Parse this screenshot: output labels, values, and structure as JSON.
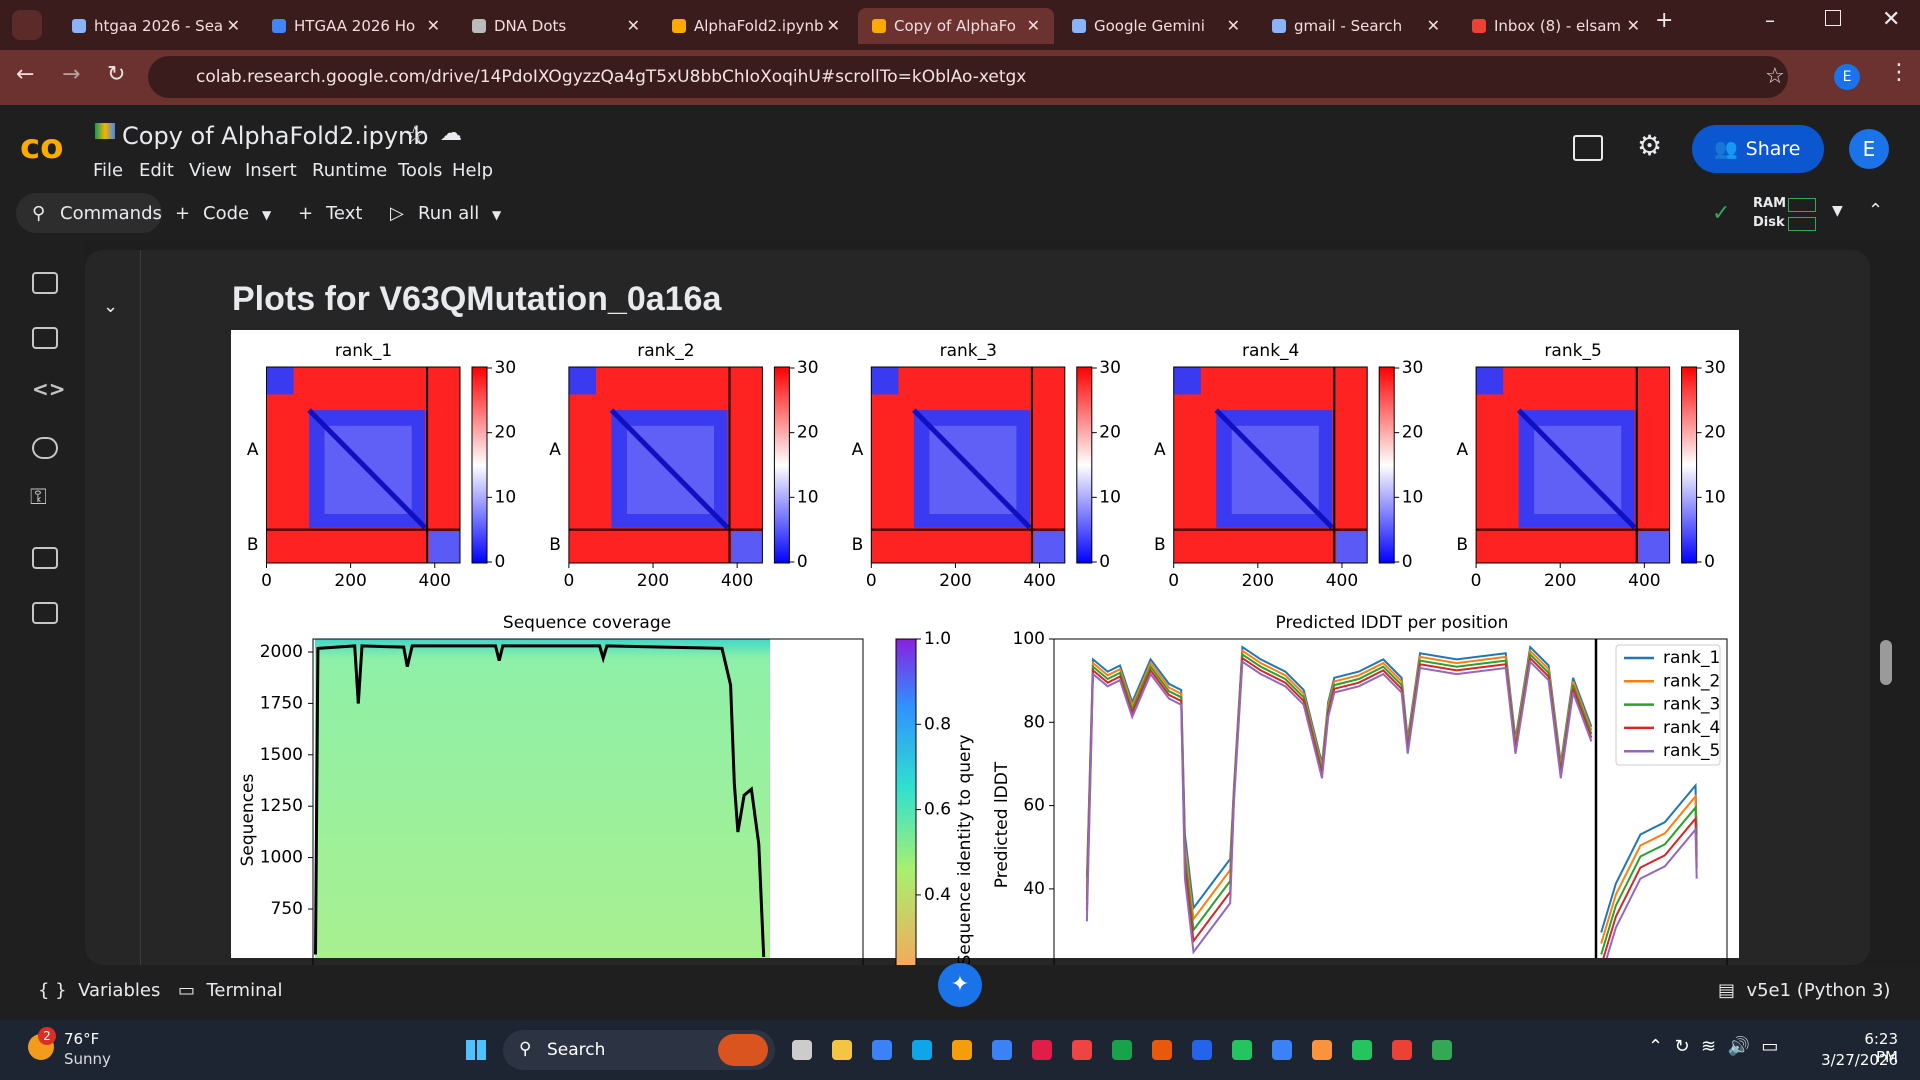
{
  "browser": {
    "tabs": [
      "htgaa 2026 - Sea",
      "HTGAA 2026 Ho",
      "DNA Dots",
      "AlphaFold2.ipynb",
      "Copy of AlphaFo",
      "Google Gemini",
      "gmail - Search",
      "Inbox (8) - elsam"
    ],
    "url": "colab.research.google.com/drive/14PdoIXOgyzzQa4gT5xU8bbChIoXoqihU#scrollTo=kOblAo-xetgx",
    "profile": "E"
  },
  "notebook": {
    "title": "Copy of AlphaFold2.ipynb",
    "menu": [
      "File",
      "Edit",
      "View",
      "Insert",
      "Runtime",
      "Tools",
      "Help"
    ],
    "toolbar": [
      "Commands",
      "Code",
      "Text",
      "Run all"
    ],
    "share": "Share",
    "avatar": "E",
    "resources": [
      "RAM",
      "Disk"
    ]
  },
  "output": {
    "heading": "Plots for V63QMutation_0a16a",
    "pae": {
      "panels": [
        "rank_1",
        "rank_2",
        "rank_3",
        "rank_4",
        "rank_5"
      ],
      "chain_labels": [
        "A",
        "B"
      ],
      "xticks": [
        0,
        200,
        400
      ],
      "colorbar_ticks": [
        30,
        20,
        10,
        0
      ]
    },
    "coverage": {
      "title": "Sequence coverage",
      "ylabel": "Sequences",
      "yticks": [
        2000,
        1750,
        1500,
        1250,
        1000,
        750
      ],
      "colorbar_label": "Sequence identity to query",
      "colorbar_ticks": [
        "1.0",
        "0.8",
        "0.6",
        "0.4"
      ]
    },
    "plddt": {
      "title": "Predicted lDDT per position",
      "ylabel": "Predicted lDDT",
      "yticks": [
        100,
        80,
        60,
        40
      ],
      "legend": [
        {
          "name": "rank_1",
          "color": "#1f77b4"
        },
        {
          "name": "rank_2",
          "color": "#ff7f0e"
        },
        {
          "name": "rank_3",
          "color": "#2ca02c"
        },
        {
          "name": "rank_4",
          "color": "#d62728"
        },
        {
          "name": "rank_5",
          "color": "#9467bd"
        }
      ]
    }
  },
  "status": {
    "variables": "Variables",
    "terminal": "Terminal",
    "runtime": "v5e1 (Python 3)"
  },
  "taskbar": {
    "badge": "2",
    "temperature": "76°F",
    "weather": "Sunny",
    "search": "Search",
    "time": "6:23 PM",
    "date": "3/27/2026"
  }
}
